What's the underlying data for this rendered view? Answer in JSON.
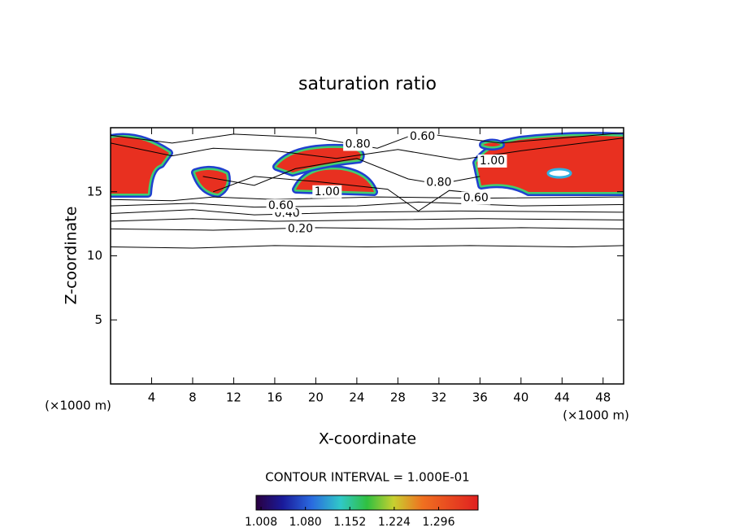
{
  "chart_data": {
    "type": "contour",
    "title": "saturation ratio",
    "xlabel": "X-coordinate",
    "ylabel": "Z-coordinate",
    "x_unit_left": "(×1000 m)",
    "x_unit_right": "(×1000 m)",
    "xlim": [
      0,
      50
    ],
    "xticks": [
      4,
      8,
      12,
      16,
      20,
      24,
      28,
      32,
      36,
      40,
      44,
      48
    ],
    "ylim": [
      0,
      20
    ],
    "yticks": [
      5,
      10,
      15
    ],
    "contour_interval": "CONTOUR INTERVAL = 1.000E-01",
    "contour_labels": [
      {
        "value": 0.2,
        "label": "0.20"
      },
      {
        "value": 0.4,
        "label": "0.40"
      },
      {
        "value": 0.6,
        "label": "0.60"
      },
      {
        "value": 1.0,
        "label": "1.00"
      },
      {
        "value": 0.8,
        "label": "0.80"
      },
      {
        "value": 0.6,
        "label": "0.60"
      },
      {
        "value": 0.8,
        "label": "0.80"
      },
      {
        "value": 1.0,
        "label": "1.00"
      },
      {
        "value": 0.6,
        "label": "0.60"
      }
    ],
    "clim": [
      1.0,
      1.36
    ],
    "cticks": [
      1.008,
      {
        "value": 1.08,
        "label": "1.080"
      },
      1.152,
      1.224,
      1.296
    ]
  }
}
